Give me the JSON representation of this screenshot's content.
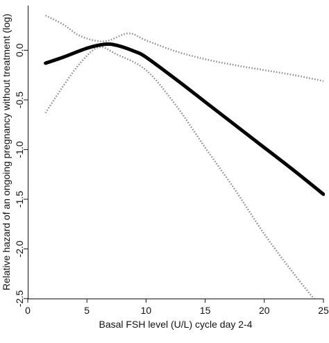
{
  "chart_data": {
    "type": "line",
    "title": "",
    "xlabel": "Basal FSH level (U/L) cycle day 2-4",
    "ylabel": "Relative hazard of an ongoing pregnancy without treatment (log)",
    "xlim": [
      0,
      25
    ],
    "ylim": [
      -2.5,
      0.45
    ],
    "x_ticks": [
      0,
      5,
      10,
      15,
      20,
      25
    ],
    "x_tick_labels": [
      "0",
      "5",
      "10",
      "15",
      "20",
      "25"
    ],
    "y_ticks": [
      0.0,
      -0.5,
      -1.0,
      -1.5,
      -2.0,
      -2.5
    ],
    "y_tick_labels": [
      "0.0",
      "-0.5",
      "-1.0",
      "-1.5",
      "-2.0",
      "-2.5"
    ],
    "grid": false,
    "series": [
      {
        "role": "estimate",
        "style": "solid",
        "color": "#000000",
        "points": [
          [
            1.5,
            -0.13
          ],
          [
            3,
            -0.07
          ],
          [
            5,
            0.02
          ],
          [
            6.5,
            0.06
          ],
          [
            7.5,
            0.05
          ],
          [
            9,
            -0.01
          ],
          [
            10,
            -0.07
          ],
          [
            12.5,
            -0.29
          ],
          [
            15,
            -0.52
          ],
          [
            17.5,
            -0.75
          ],
          [
            20,
            -0.98
          ],
          [
            22.5,
            -1.21
          ],
          [
            25,
            -1.45
          ]
        ]
      },
      {
        "role": "upper confidence bound",
        "style": "dotted",
        "color": "#888888",
        "points": [
          [
            1.5,
            0.35
          ],
          [
            3,
            0.26
          ],
          [
            4.5,
            0.14
          ],
          [
            6.5,
            0.09
          ],
          [
            8.5,
            0.17
          ],
          [
            10,
            0.1
          ],
          [
            12.5,
            -0.01
          ],
          [
            15,
            -0.09
          ],
          [
            17.5,
            -0.15
          ],
          [
            20,
            -0.2
          ],
          [
            22.5,
            -0.25
          ],
          [
            25,
            -0.31
          ]
        ]
      },
      {
        "role": "lower confidence bound",
        "style": "dotted",
        "color": "#888888",
        "points": [
          [
            1.5,
            -0.63
          ],
          [
            3,
            -0.36
          ],
          [
            4.5,
            -0.12
          ],
          [
            6,
            0.03
          ],
          [
            7.5,
            -0.04
          ],
          [
            10,
            -0.2
          ],
          [
            12.5,
            -0.55
          ],
          [
            15,
            -0.98
          ],
          [
            17.5,
            -1.4
          ],
          [
            20,
            -1.85
          ],
          [
            22.5,
            -2.25
          ],
          [
            25,
            -2.62
          ]
        ]
      }
    ]
  }
}
